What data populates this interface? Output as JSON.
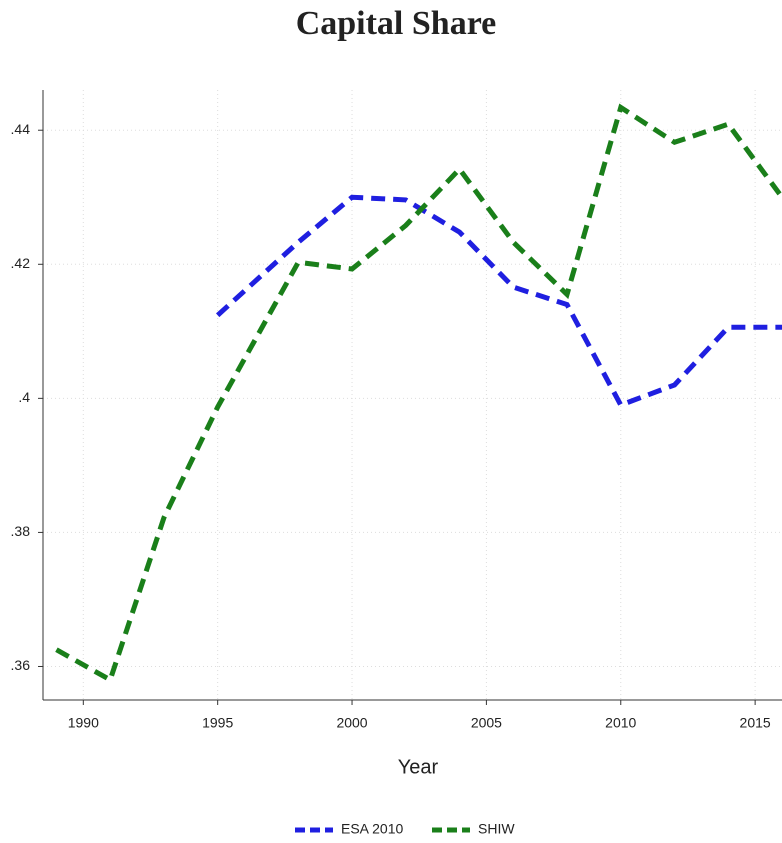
{
  "chart_data": {
    "type": "line",
    "title": "Capital Share",
    "x_label": "Year",
    "x": [
      1989,
      1991,
      1993,
      1995,
      1998,
      2000,
      2002,
      2004,
      2006,
      2008,
      2010,
      2012,
      2014,
      2016
    ],
    "series": [
      {
        "name": "ESA 2010",
        "color": "#1f1fe0",
        "values": [
          null,
          null,
          null,
          0.4124,
          0.4233,
          0.43,
          0.4296,
          0.4248,
          0.4166,
          0.414,
          0.399,
          0.402,
          0.4106,
          0.4106
        ]
      },
      {
        "name": "SHIW",
        "color": "#1a7f1a",
        "values": [
          0.3625,
          0.358,
          0.3822,
          0.3987,
          0.4203,
          0.4193,
          0.4258,
          0.4342,
          0.4233,
          0.4155,
          0.4434,
          0.4382,
          0.4409,
          0.43
        ]
      }
    ],
    "xlim": [
      1988.5,
      2016
    ],
    "xticks": [
      1990,
      1995,
      2000,
      2005,
      2010,
      2015
    ],
    "ylim": [
      0.355,
      0.446
    ],
    "yticks": [
      {
        "value": 0.36,
        "label": ".36"
      },
      {
        "value": 0.38,
        "label": ".38"
      },
      {
        "value": 0.4,
        "label": ".4"
      },
      {
        "value": 0.42,
        "label": ".42"
      },
      {
        "value": 0.44,
        "label": ".44"
      }
    ],
    "grid": true,
    "legend": "bottom"
  }
}
